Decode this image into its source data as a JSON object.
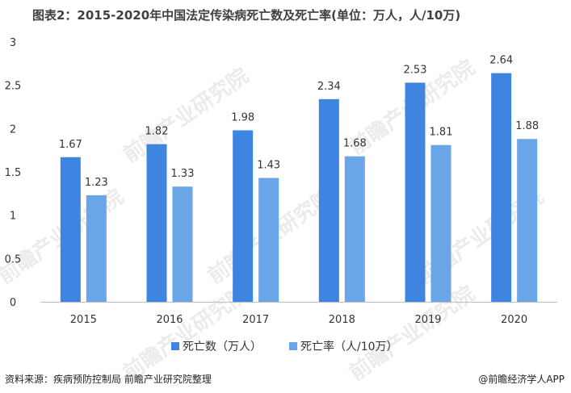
{
  "title": "图表2：2015-2020年中国法定传染病死亡数及死亡率(单位：万人，人/10万)",
  "source": "资料来源：疾病预防控制局 前瞻产业研究院整理",
  "brand": "@前瞻经济学人APP",
  "watermark": "前瞻产业研究院",
  "colors": {
    "series1": "#3d85e0",
    "series2": "#6aa5e8",
    "axis": "#bfbfbf",
    "text": "#333333"
  },
  "chart_data": {
    "type": "bar",
    "categories": [
      "2015",
      "2016",
      "2017",
      "2018",
      "2019",
      "2020"
    ],
    "series": [
      {
        "name": "死亡数（万人）",
        "values": [
          1.67,
          1.82,
          1.98,
          2.34,
          2.53,
          2.64
        ]
      },
      {
        "name": "死亡率（人/10万）",
        "values": [
          1.23,
          1.33,
          1.43,
          1.68,
          1.81,
          1.88
        ]
      }
    ],
    "ylim": [
      0,
      3
    ],
    "yticks": [
      "0",
      "0.5",
      "1",
      "1.5",
      "2",
      "2.5",
      "3"
    ],
    "grid": false,
    "legend_position": "bottom"
  }
}
